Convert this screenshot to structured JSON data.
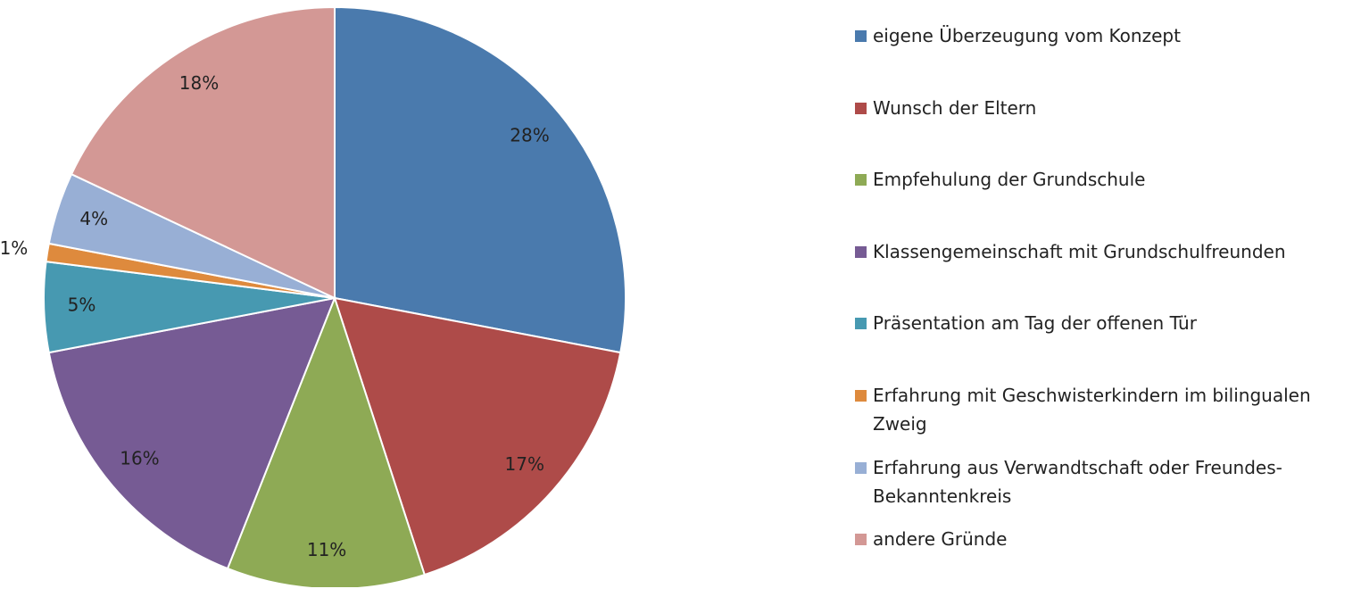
{
  "chart_data": {
    "type": "pie",
    "categories": [
      "eigene Überzeugung vom Konzept",
      "Wunsch der Eltern",
      "Empfehulung der Grundschule",
      "Klassengemeinschaft mit Grundschulfreunden",
      "Präsentation am Tag der offenen Tür",
      "Erfahrung mit Geschwisterkindern im bilingualen Zweig",
      "Erfahrung aus Verwandtschaft oder Freundes-Bekanntenkreis",
      "andere Gründe"
    ],
    "values": [
      28,
      17,
      11,
      16,
      5,
      1,
      4,
      18
    ],
    "value_labels": [
      "28%",
      "17%",
      "11%",
      "16%",
      "5%",
      "1%",
      "4%",
      "18%"
    ],
    "colors": [
      "#4a7aad",
      "#ae4b49",
      "#8eaa55",
      "#765b94",
      "#4799b1",
      "#de8a3d",
      "#98afd5",
      "#d39895"
    ],
    "legend": "right"
  }
}
